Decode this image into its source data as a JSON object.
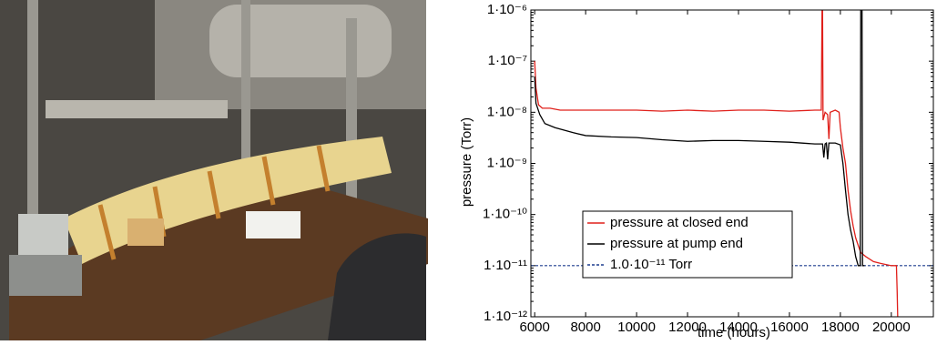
{
  "chart_data": {
    "type": "line",
    "xlabel": "time (hours)",
    "ylabel": "pressure (Torr)",
    "xlim": [
      5850,
      21650
    ],
    "ylim": [
      1e-12,
      1e-06
    ],
    "log_y": true,
    "legend": "center-left",
    "xticks": [
      6000,
      8000,
      10000,
      12000,
      14000,
      16000,
      18000,
      20000
    ],
    "yticks": [
      {
        "value": 1e-06,
        "label": "1·10⁻⁶"
      },
      {
        "value": 1e-07,
        "label": "1·10⁻⁷"
      },
      {
        "value": 1e-08,
        "label": "1·10⁻⁸"
      },
      {
        "value": 1e-09,
        "label": "1·10⁻⁹"
      },
      {
        "value": 1e-10,
        "label": "1·10⁻¹⁰"
      },
      {
        "value": 1e-11,
        "label": "1·10⁻¹¹"
      },
      {
        "value": 1e-12,
        "label": "1·10⁻¹²"
      }
    ],
    "series": [
      {
        "name": "pressure at closed end",
        "color": "#e0201b",
        "x": [
          6000,
          6050,
          6150,
          6300,
          6600,
          7000,
          8000,
          9000,
          10000,
          11000,
          12000,
          13000,
          14000,
          15000,
          16000,
          17000,
          17250,
          17280,
          17300,
          17320,
          17400,
          17500,
          17550,
          17600,
          17800,
          17950,
          18000,
          18100,
          18200,
          18300,
          18400,
          18500,
          18600,
          18700,
          18800,
          19000,
          19300,
          19600,
          20000,
          20200,
          20230,
          20250
        ],
        "values": [
          1e-07,
          3e-08,
          1.4e-08,
          1.2e-08,
          1.2e-08,
          1.1e-08,
          1.1e-08,
          1.1e-08,
          1.1e-08,
          1.05e-08,
          1.1e-08,
          1.05e-08,
          1.1e-08,
          1.1e-08,
          1.05e-08,
          1.1e-08,
          1.1e-08,
          1e-06,
          1e-06,
          7e-09,
          1e-08,
          9e-09,
          3e-09,
          1e-08,
          1.1e-08,
          1e-08,
          5e-09,
          2e-09,
          1e-09,
          3e-10,
          1.2e-10,
          6e-11,
          3.5e-11,
          2.5e-11,
          1.8e-11,
          1.5e-11,
          1.2e-11,
          1.1e-11,
          1e-11,
          1e-11,
          3e-12,
          1e-12
        ]
      },
      {
        "name": "pressure at pump end",
        "color": "#000000",
        "x": [
          6000,
          6050,
          6200,
          6400,
          6800,
          7500,
          8000,
          9000,
          10000,
          11000,
          12000,
          13000,
          14000,
          15000,
          16000,
          17000,
          17300,
          17350,
          17400,
          17450,
          17500,
          17550,
          17800,
          18000,
          18100,
          18200,
          18300,
          18400,
          18500,
          18600,
          18700,
          18780,
          18800,
          18850,
          18870,
          18950
        ],
        "values": [
          5e-08,
          1.5e-08,
          9e-09,
          6e-09,
          5e-09,
          4e-09,
          3.5e-09,
          3.3e-09,
          3.2e-09,
          2.9e-09,
          2.7e-09,
          2.8e-09,
          2.8e-09,
          2.7e-09,
          2.6e-09,
          2.4e-09,
          2.4e-09,
          1.3e-09,
          2.4e-09,
          2.5e-09,
          1.2e-09,
          2.5e-09,
          2.5e-09,
          2.3e-09,
          1e-09,
          3e-10,
          1e-10,
          5e-11,
          3e-11,
          1.5e-11,
          1e-11,
          1e-11,
          1e-06,
          1e-06,
          1e-11,
          1e-11
        ]
      }
    ],
    "reference": {
      "name": "1.0·10⁻¹¹ Torr",
      "value": 1e-11,
      "color": "#1f3f8f"
    }
  }
}
